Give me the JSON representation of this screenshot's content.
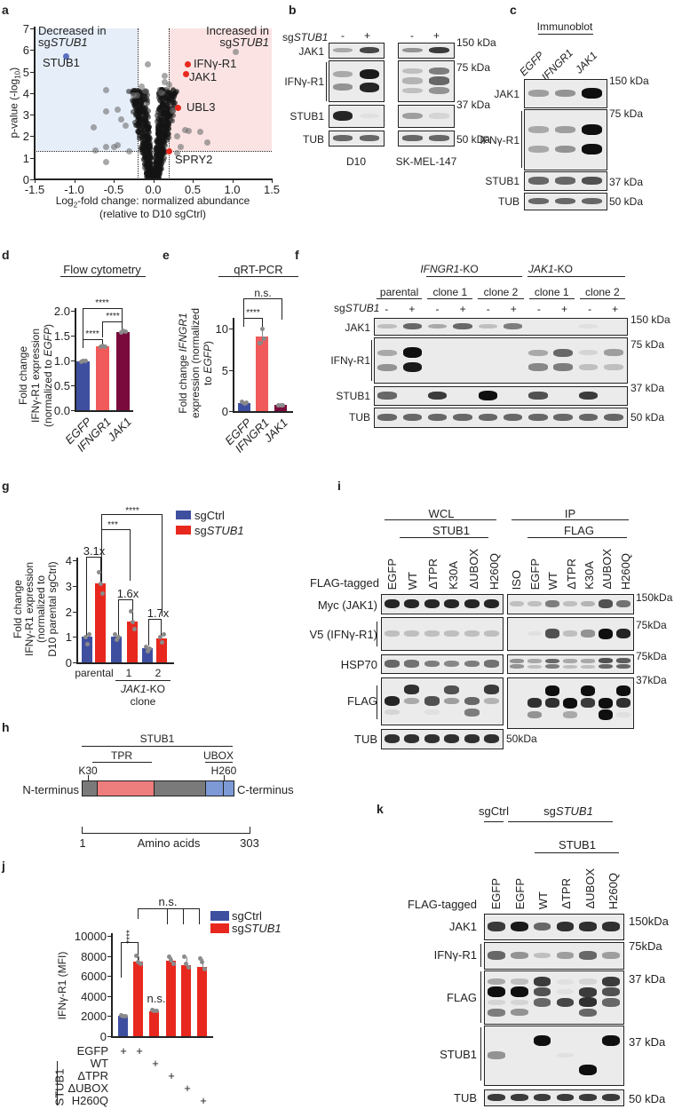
{
  "panel_a": {
    "letter": "a",
    "decreased": "Decreased in",
    "increased": "Increased in",
    "sg": "sg",
    "gene": "STUB1",
    "ylabel": "p-value (-log",
    "ylabel_sub": "10",
    "ylabel_end": ")",
    "xlabel_1": "Log",
    "xlabel_sub": "2",
    "xlabel_2": "-fold change: normalized abundance",
    "xlabel_3": "(relative to D10 sgCtrl)"
  },
  "panel_b": {
    "letter": "b",
    "sg": "sg",
    "gene": "STUB1",
    "signs": [
      "-",
      "+",
      "-",
      "+"
    ],
    "rows": [
      "JAK1",
      "IFNγ-R1",
      "STUB1",
      "TUB"
    ],
    "markers": [
      "150 kDa",
      "75 kDa",
      "37 kDa",
      "50 kDa"
    ],
    "cell_lines": [
      "D10",
      "SK-MEL-147"
    ]
  },
  "panel_c": {
    "letter": "c",
    "title": "Immunoblot",
    "lanes": [
      "EGFP",
      "IFNGR1",
      "JAK1"
    ],
    "rows": [
      "JAK1",
      "IFNγ-R1",
      "STUB1",
      "TUB"
    ],
    "markers": [
      "150 kDa",
      "75 kDa",
      "37 kDa",
      "50 kDa"
    ]
  },
  "panel_d": {
    "letter": "d",
    "title": "Flow cytometry",
    "ylabel_1": "Fold change",
    "ylabel_2": "IFNγ-R1 expression",
    "ylabel_3": "(normalized to ",
    "ylabel_4": "EGFP",
    "ylabel_5": ")",
    "sig": [
      "****",
      "****",
      "****"
    ]
  },
  "panel_e": {
    "letter": "e",
    "title": "qRT-PCR",
    "ylabel_1": "Fold change ",
    "ylabel_1i": "IFNGR1",
    "ylabel_2": "expression (normalized",
    "ylabel_3": "to ",
    "ylabel_3i": "EGFP",
    "ylabel_3e": ")",
    "sig": [
      "n.s.",
      "****"
    ]
  },
  "panel_f": {
    "letter": "f",
    "sg": "sg",
    "gene": "STUB1",
    "groups": [
      {
        "label": "",
        "gene": "IFNGR1",
        "suffix": "-KO"
      },
      {
        "label": "",
        "gene": "JAK1",
        "suffix": "-KO"
      }
    ],
    "lane_groups": [
      "parental",
      "clone 1",
      "clone 2",
      "clone 1",
      "clone 2"
    ],
    "signs": [
      "-",
      "+",
      "-",
      "+",
      "-",
      "+",
      "-",
      "+",
      "-",
      "+"
    ],
    "rows": [
      "JAK1",
      "IFNγ-R1",
      "STUB1",
      "TUB"
    ],
    "markers": [
      "150 kDa",
      "75 kDa",
      "37 kDa",
      "50 kDa"
    ]
  },
  "panel_g": {
    "letter": "g",
    "ylabel_1": "Fold change",
    "ylabel_2": "IFNγ-R1 expression",
    "ylabel_3": "(normalized to",
    "ylabel_4": "D10 parental sgCtrl)",
    "legend": [
      {
        "label": "sgCtrl",
        "color": "#3f4fa0"
      },
      {
        "label": "sg",
        "italic": "STUB1",
        "color": "#e8281e"
      }
    ],
    "fold_labels": [
      "3.1x",
      "1.6x",
      "1.7x"
    ],
    "sig": [
      "****",
      "***"
    ],
    "xcats": [
      "parental",
      "1",
      "2"
    ],
    "xgroup_gene": "JAK1",
    "xgroup_suffix": "-KO",
    "xgroup_2": "clone"
  },
  "panel_h": {
    "letter": "h",
    "title": "STUB1",
    "tpr": "TPR",
    "ubox": "UBOX",
    "k30": "K30",
    "h260": "H260",
    "n_term": "N-terminus",
    "c_term": "C-terminus",
    "start": "1",
    "axis": "Amino acids",
    "end": "303"
  },
  "panel_i": {
    "letter": "i",
    "wcl": "WCL",
    "wcl_sub": "STUB1",
    "ip": "IP",
    "ip_sub": "FLAG",
    "flag_tagged": "FLAG-tagged",
    "wcl_lanes": [
      "EGFP",
      "WT",
      "ΔTPR",
      "K30A",
      "ΔUBOX",
      "H260Q"
    ],
    "ip_lanes": [
      "ISO",
      "EGFP",
      "WT",
      "ΔTPR",
      "K30A",
      "ΔUBOX",
      "H260Q"
    ],
    "rows": [
      "Myc (JAK1)",
      "V5 (IFNγ-R1)",
      "HSP70",
      "FLAG",
      "TUB"
    ],
    "markers": [
      "150kDa",
      "75kDa",
      "75kDa",
      "37kDa",
      "50kDa"
    ]
  },
  "panel_j": {
    "letter": "j",
    "ylabel": "IFNγ-R1 (MFI)",
    "sig": [
      "****",
      "n.s.",
      "n.s."
    ],
    "legend": [
      {
        "label": "sgCtrl",
        "color": "#3f4fa0"
      },
      {
        "label": "sg",
        "italic": "STUB1",
        "color": "#e8281e"
      }
    ],
    "conditions": [
      {
        "label": "EGFP",
        "marks": [
          "+",
          "+",
          "",
          "",
          "",
          ""
        ]
      },
      {
        "label": "WT",
        "marks": [
          "",
          "",
          "+",
          "",
          "",
          ""
        ]
      },
      {
        "label": "ΔTPR",
        "marks": [
          "",
          "",
          "",
          "+",
          "",
          ""
        ]
      },
      {
        "label": "ΔUBOX",
        "marks": [
          "",
          "",
          "",
          "",
          "+",
          ""
        ]
      },
      {
        "label": "H260Q",
        "marks": [
          "",
          "",
          "",
          "",
          "",
          "+"
        ]
      }
    ],
    "group": "STUB1"
  },
  "panel_k": {
    "letter": "k",
    "sgctrl": "sgCtrl",
    "sg": "sg",
    "gene": "STUB1",
    "stub1": "STUB1",
    "flag_tagged": "FLAG-tagged",
    "lanes": [
      "EGFP",
      "EGFP",
      "WT",
      "ΔTPR",
      "ΔUBOX",
      "H260Q"
    ],
    "rows": [
      "JAK1",
      "IFNγ-R1",
      "FLAG",
      "STUB1",
      "TUB"
    ],
    "markers": [
      "150kDa",
      "75kDa",
      "37 kDa",
      "37 kDa",
      "50 kDa"
    ]
  },
  "blots": {
    "b_d10": {
      "lanes": 2,
      "rows": [
        [
          [
            0.3,
            0.75
          ]
        ],
        [
          [
            0.3,
            0.95
          ],
          [
            0.4,
            0.9
          ]
        ],
        [
          [
            0.9,
            0.05
          ]
        ],
        [
          [
            0.6,
            0.6
          ]
        ]
      ]
    },
    "b_sk": {
      "lanes": 2,
      "rows": [
        [
          [
            0.4,
            0.8
          ]
        ],
        [
          [
            0.2,
            0.5
          ],
          [
            0.25,
            0.6
          ],
          [
            0.2,
            0.4
          ]
        ],
        [
          [
            0.35,
            0.1
          ]
        ],
        [
          [
            0.6,
            0.6
          ]
        ]
      ]
    },
    "c": {
      "lanes": 3,
      "rows": [
        [
          [
            0.35,
            0.4,
            1
          ]
        ],
        [
          [
            0.3,
            0.35,
            1
          ],
          [
            0.3,
            0.4,
            1
          ]
        ],
        [
          [
            0.6,
            0.6,
            0.7
          ]
        ],
        [
          [
            0.6,
            0.6,
            0.6
          ]
        ]
      ]
    },
    "f": {
      "lanes": 10,
      "rows": [
        [
          [
            0.2,
            0.6,
            0.3,
            0.6,
            0.2,
            0.5,
            0,
            0,
            0.05,
            0
          ]
        ],
        [
          [
            0.3,
            1,
            0,
            0,
            0,
            0,
            0.3,
            0.6,
            0.1,
            0.35
          ],
          [
            0.4,
            0.95,
            0,
            0,
            0,
            0,
            0.45,
            0.5,
            0.2,
            0.2
          ]
        ],
        [
          [
            0.6,
            0,
            0.8,
            0,
            1,
            0,
            0.7,
            0,
            0.8,
            0
          ]
        ],
        [
          [
            0.6,
            0.6,
            0.6,
            0.6,
            0.6,
            0.6,
            0.6,
            0.6,
            0.6,
            0.6
          ]
        ]
      ]
    },
    "i_wcl": {
      "lanes": 6,
      "rows": [
        [
          [
            0.9,
            0.9,
            0.9,
            0.9,
            0.9,
            0.9
          ]
        ],
        [
          [
            0.2,
            0.2,
            0.2,
            0.2,
            0.2,
            0.2
          ]
        ],
        [
          [
            0.6,
            0.55,
            0.5,
            0.45,
            0.5,
            0.55
          ]
        ],
        [
          [
            0,
            0.85,
            0,
            0.7,
            0,
            0.8
          ],
          [
            0.9,
            0.3,
            0.7,
            0.35,
            0.6,
            0.25
          ],
          [
            0.1,
            0,
            0.05,
            0,
            0.5,
            0
          ]
        ],
        [
          [
            0.85,
            0.85,
            0.85,
            0.85,
            0.85,
            0.85
          ]
        ]
      ]
    },
    "i_ip": {
      "lanes": 7,
      "rows": [
        [
          [
            0.2,
            0.2,
            0.5,
            0.2,
            0.25,
            0.7,
            0.55
          ]
        ],
        [
          [
            0,
            0.05,
            0.7,
            0.2,
            0.4,
            1,
            0.9
          ]
        ],
        [
          [
            0.4,
            0.3,
            0.6,
            0.3,
            0.3,
            0.7,
            0.65
          ],
          [
            0.4,
            0.2,
            0.5,
            0.2,
            0.2,
            0.6,
            0.6
          ]
        ],
        [
          [
            0,
            0,
            1,
            0,
            1,
            0,
            1
          ],
          [
            0,
            0.85,
            0.85,
            1,
            0.8,
            1,
            0.85
          ],
          [
            0,
            0.4,
            0,
            0.3,
            0,
            1,
            0.05
          ]
        ]
      ]
    },
    "k": {
      "lanes": 6,
      "rows": [
        [
          [
            0.8,
            0.95,
            0.6,
            0.85,
            0.85,
            0.85
          ]
        ],
        [
          [
            0.6,
            0.4,
            0.2,
            0.35,
            0.6,
            0.35
          ]
        ],
        [
          [
            0.3,
            0.2,
            0.8,
            0.05,
            0.1,
            0.8
          ],
          [
            1,
            1,
            0.7,
            0.05,
            0.8,
            0.7
          ],
          [
            0.1,
            0.1,
            0.6,
            0.75,
            0.85,
            0.6
          ],
          [
            0.5,
            0.4,
            0,
            0,
            0.6,
            0
          ]
        ],
        [
          [
            0,
            0,
            1,
            0,
            0,
            1
          ],
          [
            0.4,
            0,
            0,
            0.05,
            0,
            0
          ],
          [
            0,
            0,
            0,
            0,
            1,
            0
          ]
        ],
        [
          [
            0.8,
            0.8,
            0.8,
            0.8,
            0.8,
            0.8
          ]
        ]
      ]
    }
  },
  "chart_data": [
    {
      "id": "a",
      "type": "scatter",
      "xlim": [
        -1.5,
        1.5
      ],
      "ylim": [
        0,
        7
      ],
      "xticks": [
        "-1.5",
        "-1.0",
        "-0.5",
        "0.0",
        "0.5",
        "1.0",
        "1.5"
      ],
      "yticks": [
        "0",
        "1",
        "2",
        "3",
        "4",
        "5",
        "6",
        "7"
      ],
      "thresholds": {
        "x": [
          -0.2,
          0.2
        ],
        "y": 1.3
      },
      "highlighted": [
        {
          "label": "STUB1",
          "x": -1.1,
          "y": 5.7,
          "color": "#5a6fc0"
        },
        {
          "label": "IFNγ-R1",
          "x": 0.44,
          "y": 5.35,
          "color": "#e8281e"
        },
        {
          "label": "JAK1",
          "x": 0.42,
          "y": 4.9,
          "color": "#e8281e"
        },
        {
          "label": "UBL3",
          "x": 0.32,
          "y": 3.3,
          "color": "#e8281e"
        },
        {
          "label": "SPRY2",
          "x": 0.2,
          "y": 1.3,
          "color": "#e8281e"
        }
      ],
      "points": [
        [
          1.05,
          5.9
        ],
        [
          -0.07,
          5.35
        ],
        [
          -0.6,
          4.15
        ],
        [
          -0.15,
          4.3
        ],
        [
          -0.1,
          4.1
        ],
        [
          -0.25,
          3.9
        ],
        [
          -0.2,
          3.9
        ],
        [
          -0.45,
          3.25
        ],
        [
          -0.6,
          3.15
        ],
        [
          -0.4,
          2.8
        ],
        [
          -0.75,
          2.4
        ],
        [
          -0.35,
          2.5
        ],
        [
          0.25,
          3.2
        ],
        [
          0.45,
          2.25
        ],
        [
          0.4,
          2.3
        ],
        [
          0.6,
          2.2
        ],
        [
          0.68,
          1.7
        ],
        [
          0.3,
          2.0
        ],
        [
          -0.6,
          1.5
        ],
        [
          -0.5,
          1.5
        ],
        [
          -0.73,
          1.35
        ],
        [
          -0.45,
          1.6
        ],
        [
          -0.6,
          0.8
        ],
        [
          -0.3,
          1.3
        ],
        [
          0.3,
          1.2
        ],
        [
          0.35,
          1.5
        ],
        [
          0.15,
          4.5
        ],
        [
          0.15,
          4.8
        ],
        [
          0.1,
          4.0
        ],
        [
          0.2,
          4.4
        ]
      ]
    },
    {
      "id": "d",
      "type": "bar",
      "categories": [
        "EGFP",
        "IFNGR1",
        "JAK1"
      ],
      "values": [
        0.99,
        1.28,
        1.58
      ],
      "points": [
        [
          0.98,
          1.0,
          0.99
        ],
        [
          1.27,
          1.29,
          1.28
        ],
        [
          1.57,
          1.59,
          1.58
        ]
      ],
      "colors": [
        "#3f4fa0",
        "#f05a5a",
        "#7a0a3c"
      ],
      "ylim": [
        0,
        2
      ],
      "yticks": [
        "0.0",
        "0.5",
        "1.0",
        "1.5",
        "2.0"
      ]
    },
    {
      "id": "e",
      "type": "bar",
      "categories": [
        "EGFP",
        "IFNGR1",
        "JAK1"
      ],
      "values": [
        1.0,
        9.0,
        0.7
      ],
      "points": [
        [
          1.1,
          0.9,
          1.0
        ],
        [
          8.2,
          10.0,
          8.8
        ],
        [
          0.7,
          0.65,
          0.75
        ]
      ],
      "colors": [
        "#3f4fa0",
        "#f05a5a",
        "#7a0a3c"
      ],
      "ylim": [
        0,
        12
      ],
      "yticks": [
        "0",
        "5",
        "10"
      ]
    },
    {
      "id": "g",
      "type": "bar",
      "categories": [
        "parental",
        "1",
        "2"
      ],
      "series": [
        {
          "name": "sgCtrl",
          "values": [
            1.0,
            1.0,
            0.55
          ],
          "points": [
            [
              1.0,
              0.7,
              1.1
            ],
            [
              1.1,
              0.9,
              1.0
            ],
            [
              0.6,
              0.45,
              0.55
            ]
          ]
        },
        {
          "name": "sgSTUB1",
          "values": [
            3.1,
            1.6,
            0.95
          ],
          "points": [
            [
              3.55,
              3.1,
              2.7
            ],
            [
              2.0,
              1.6,
              1.3
            ],
            [
              1.0,
              0.8,
              1.1
            ]
          ]
        }
      ],
      "ylim": [
        0,
        4
      ],
      "yticks": [
        "0",
        "1",
        "2",
        "3",
        "4"
      ]
    },
    {
      "id": "j",
      "type": "bar",
      "categories": [
        "EGFP",
        "EGFP",
        "WT",
        "ΔTPR",
        "ΔUBOX",
        "H260Q"
      ],
      "values": [
        2000,
        7400,
        2500,
        7500,
        7100,
        6900
      ],
      "points": [
        [
          2100,
          2000,
          1950
        ],
        [
          8000,
          7400,
          7200
        ],
        [
          2600,
          2550,
          2500
        ],
        [
          7900,
          7600,
          7200
        ],
        [
          7900,
          7200,
          6900
        ],
        [
          7700,
          7400,
          6700
        ]
      ],
      "colors": [
        "#3f4fa0",
        "#e8281e",
        "#e8281e",
        "#e8281e",
        "#e8281e",
        "#e8281e"
      ],
      "ylim": [
        0,
        10000
      ],
      "yticks": [
        "0",
        "2000",
        "4000",
        "6000",
        "8000",
        "10000"
      ]
    }
  ]
}
